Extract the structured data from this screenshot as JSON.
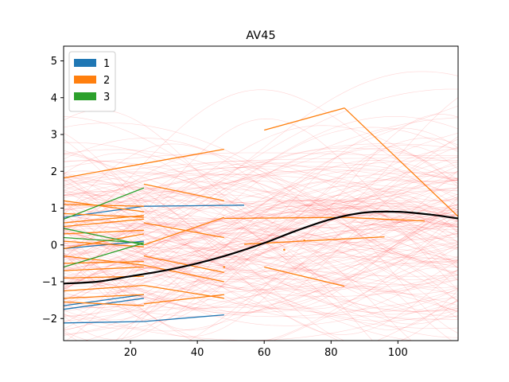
{
  "chart_data": {
    "type": "line",
    "title": "AV45",
    "xlabel": "",
    "ylabel": "",
    "xlim": [
      0,
      118
    ],
    "ylim": [
      -2.6,
      5.4
    ],
    "x_ticks": [
      20,
      40,
      60,
      80,
      100
    ],
    "y_ticks": [
      -2,
      -1,
      0,
      1,
      2,
      3,
      4,
      5
    ],
    "grid": false,
    "legend": {
      "placement": "top-left",
      "entries": [
        {
          "label": "1",
          "color": "#1f77b4"
        },
        {
          "label": "2",
          "color": "#ff7f0e"
        },
        {
          "label": "3",
          "color": "#2ca02c"
        }
      ]
    },
    "mean_curve": {
      "color": "#000000",
      "x": [
        0,
        10,
        20,
        30,
        40,
        50,
        60,
        70,
        80,
        90,
        100,
        110,
        118
      ],
      "y": [
        -1.05,
        -1.0,
        -0.85,
        -0.7,
        -0.5,
        -0.25,
        0.05,
        0.4,
        0.7,
        0.88,
        0.9,
        0.82,
        0.72
      ]
    },
    "background_curves": {
      "color": "#ff4444",
      "count": 180,
      "description_none": true
    },
    "series": [
      {
        "group": "1",
        "x": [
          0,
          24
        ],
        "y": [
          -2.12,
          -2.08
        ]
      },
      {
        "group": "1",
        "x": [
          24,
          48
        ],
        "y": [
          -2.08,
          -1.9
        ]
      },
      {
        "group": "1",
        "x": [
          0,
          24
        ],
        "y": [
          0.75,
          1.05
        ]
      },
      {
        "group": "1",
        "x": [
          24,
          54
        ],
        "y": [
          1.05,
          1.08
        ]
      },
      {
        "group": "1",
        "x": [
          0,
          24
        ],
        "y": [
          -1.75,
          -1.45
        ]
      },
      {
        "group": "1",
        "x": [
          0,
          24
        ],
        "y": [
          -1.65,
          -1.35
        ]
      },
      {
        "group": "1",
        "x": [
          0,
          24
        ],
        "y": [
          -0.1,
          0.1
        ]
      },
      {
        "group": "2",
        "x": [
          0,
          48
        ],
        "y": [
          1.82,
          2.6
        ]
      },
      {
        "group": "2",
        "x": [
          0,
          24
        ],
        "y": [
          1.2,
          0.9
        ]
      },
      {
        "group": "2",
        "x": [
          0,
          24
        ],
        "y": [
          1.1,
          1.05
        ]
      },
      {
        "group": "2",
        "x": [
          0,
          24
        ],
        "y": [
          0.85,
          0.75
        ]
      },
      {
        "group": "2",
        "x": [
          0,
          24
        ],
        "y": [
          0.6,
          0.8
        ]
      },
      {
        "group": "2",
        "x": [
          0,
          24
        ],
        "y": [
          0.5,
          0.7
        ]
      },
      {
        "group": "2",
        "x": [
          0,
          24
        ],
        "y": [
          0.3,
          0.4
        ]
      },
      {
        "group": "2",
        "x": [
          0,
          24
        ],
        "y": [
          0.1,
          -0.05
        ]
      },
      {
        "group": "2",
        "x": [
          0,
          24
        ],
        "y": [
          -0.1,
          0.3
        ]
      },
      {
        "group": "2",
        "x": [
          0,
          24
        ],
        "y": [
          -0.3,
          -0.55
        ]
      },
      {
        "group": "2",
        "x": [
          0,
          24
        ],
        "y": [
          -0.5,
          -0.45
        ]
      },
      {
        "group": "2",
        "x": [
          0,
          24
        ],
        "y": [
          -0.7,
          -0.6
        ]
      },
      {
        "group": "2",
        "x": [
          0,
          24
        ],
        "y": [
          -0.9,
          -0.85
        ]
      },
      {
        "group": "2",
        "x": [
          0,
          24
        ],
        "y": [
          -1.25,
          -1.1
        ]
      },
      {
        "group": "2",
        "x": [
          0,
          24
        ],
        "y": [
          -1.45,
          -1.35
        ]
      },
      {
        "group": "2",
        "x": [
          0,
          24
        ],
        "y": [
          -1.55,
          -1.65
        ]
      },
      {
        "group": "2",
        "x": [
          24,
          48
        ],
        "y": [
          1.65,
          1.2
        ]
      },
      {
        "group": "2",
        "x": [
          24,
          48
        ],
        "y": [
          0.6,
          0.2
        ]
      },
      {
        "group": "2",
        "x": [
          24,
          48
        ],
        "y": [
          0.0,
          0.75
        ]
      },
      {
        "group": "2",
        "x": [
          24,
          48
        ],
        "y": [
          -0.3,
          -0.75
        ]
      },
      {
        "group": "2",
        "x": [
          24,
          48
        ],
        "y": [
          -0.55,
          -1.0
        ]
      },
      {
        "group": "2",
        "x": [
          24,
          48
        ],
        "y": [
          -1.1,
          -1.45
        ]
      },
      {
        "group": "2",
        "x": [
          24,
          48
        ],
        "y": [
          -1.6,
          -1.35
        ]
      },
      {
        "group": "2",
        "x": [
          48,
          84
        ],
        "y": [
          0.72,
          0.75
        ]
      },
      {
        "group": "2",
        "x": [
          84,
          108
        ],
        "y": [
          0.75,
          0.65
        ]
      },
      {
        "group": "2",
        "x": [
          60,
          84
        ],
        "y": [
          3.12,
          3.72
        ]
      },
      {
        "group": "2",
        "x": [
          84,
          120
        ],
        "y": [
          3.72,
          0.6
        ]
      },
      {
        "group": "2",
        "x": [
          54,
          96
        ],
        "y": [
          0.02,
          0.22
        ]
      },
      {
        "group": "2",
        "x": [
          60,
          84
        ],
        "y": [
          -0.6,
          -1.12
        ]
      },
      {
        "group": "3",
        "x": [
          0,
          24
        ],
        "y": [
          0.7,
          1.55
        ]
      },
      {
        "group": "3",
        "x": [
          0,
          24
        ],
        "y": [
          -0.6,
          0.05
        ]
      },
      {
        "group": "3",
        "x": [
          0,
          24
        ],
        "y": [
          0.45,
          0.0
        ]
      },
      {
        "group": "3",
        "x": [
          0,
          24
        ],
        "y": [
          0.2,
          0.05
        ]
      }
    ],
    "points": [
      {
        "group": "2",
        "x": 48,
        "y": -0.6
      },
      {
        "group": "2",
        "x": 66,
        "y": -0.13
      },
      {
        "group": "2",
        "x": 72,
        "y": 0.12
      }
    ]
  }
}
